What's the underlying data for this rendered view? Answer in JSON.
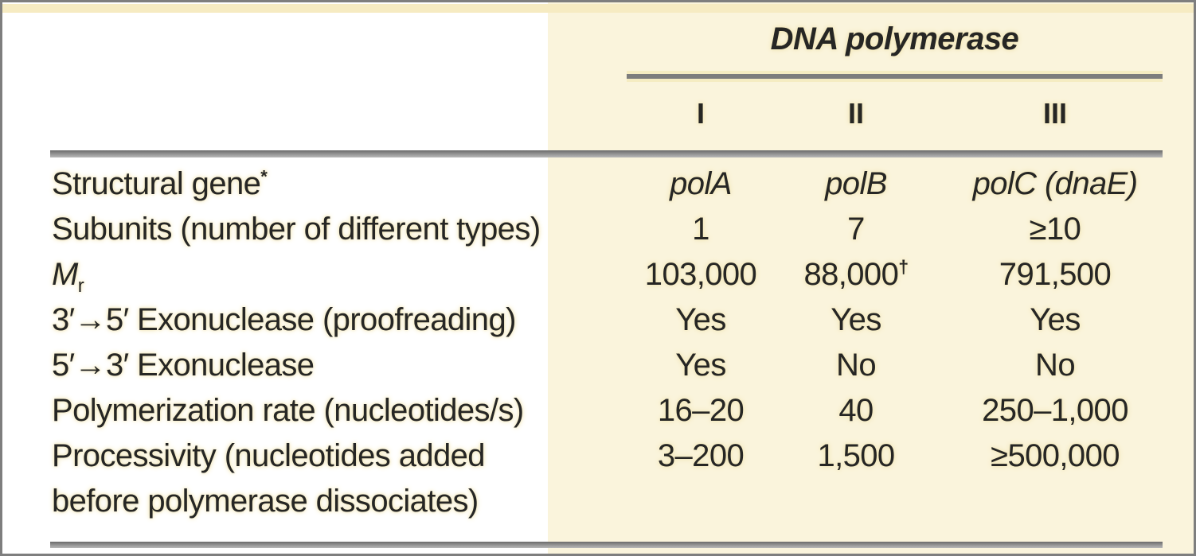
{
  "figure": {
    "title": "DNA polymerase",
    "column_headers": [
      "I",
      "II",
      "III"
    ],
    "rows": [
      {
        "label": "Structural gene",
        "label_sup": "*",
        "values": [
          "polA",
          "polB",
          "polC (dnaE)"
        ]
      },
      {
        "label": "Subunits (number of different types)",
        "values": [
          "1",
          "7",
          "≥10"
        ]
      },
      {
        "label_main": "M",
        "label_sub": "r",
        "values": [
          "103,000",
          "88,000",
          "791,500"
        ],
        "dagger": "†"
      },
      {
        "label": "3′→5′ Exonuclease (proofreading)",
        "values": [
          "Yes",
          "Yes",
          "Yes"
        ]
      },
      {
        "label": "5′→3′ Exonuclease",
        "values": [
          "Yes",
          "No",
          "No"
        ]
      },
      {
        "label": "Polymerization rate (nucleotides/s)",
        "values": [
          "16–20",
          "40",
          "250–1,000"
        ]
      },
      {
        "label": "Processivity (nucleotides added",
        "values": [
          "3–200",
          "1,500",
          "≥500,000"
        ]
      },
      {
        "label": "before polymerase dissociates)"
      }
    ],
    "colors": {
      "highlight_panel": "#faf4dc",
      "top_strip": "#f6ebc2",
      "rule_gray": "#7d7d7d",
      "border_gray": "#7e7e7e",
      "text": "#262624"
    }
  }
}
